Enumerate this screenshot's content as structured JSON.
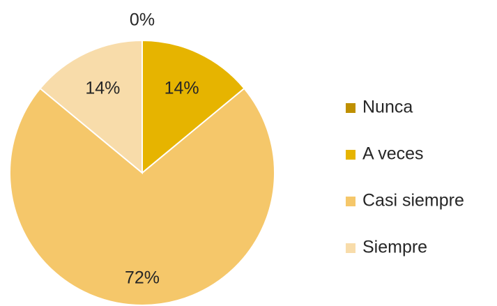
{
  "chart_data": {
    "type": "pie",
    "categories": [
      "Nunca",
      "A veces",
      "Casi siempre",
      "Siempre"
    ],
    "values": [
      0,
      14,
      72,
      14
    ],
    "value_labels": [
      "0%",
      "14%",
      "72%",
      "14%"
    ],
    "colors": [
      "#bf9000",
      "#e6b400",
      "#f5c76a",
      "#f8dcaa"
    ],
    "legend": "right"
  }
}
